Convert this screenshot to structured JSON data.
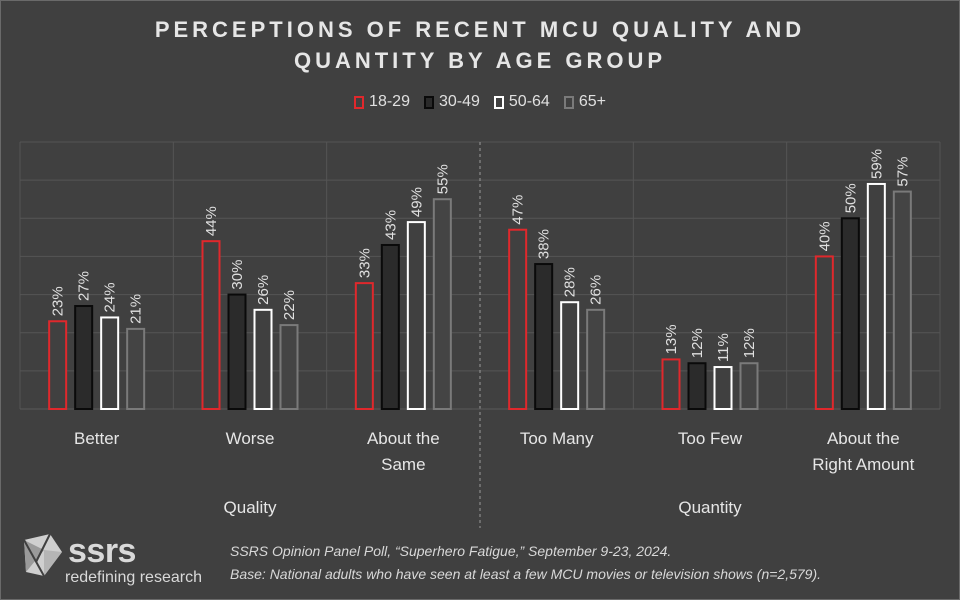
{
  "title_line1": "PERCEPTIONS OF RECENT MCU QUALITY AND",
  "title_line2": "QUANTITY BY AGE GROUP",
  "legend": [
    {
      "label": "18-29",
      "color": "#e0282c"
    },
    {
      "label": "30-49",
      "color": "#111111"
    },
    {
      "label": "50-64",
      "color": "#ffffff"
    },
    {
      "label": "65+",
      "color": "#7a7a7a"
    }
  ],
  "chart_data": {
    "type": "bar",
    "categories": [
      "Better",
      "Worse",
      "About the Same",
      "Too Many",
      "Too Few",
      "About the Right Amount"
    ],
    "category_lines": [
      [
        "Better"
      ],
      [
        "Worse"
      ],
      [
        "About the",
        "Same"
      ],
      [
        "Too Many"
      ],
      [
        "Too Few"
      ],
      [
        "About the",
        "Right Amount"
      ]
    ],
    "groups": [
      {
        "label": "Quality",
        "categories": [
          "Better",
          "Worse",
          "About the Same"
        ]
      },
      {
        "label": "Quantity",
        "categories": [
          "Too Many",
          "Too Few",
          "About the Right Amount"
        ]
      }
    ],
    "series": [
      {
        "name": "18-29",
        "values": [
          23,
          44,
          33,
          47,
          13,
          40
        ]
      },
      {
        "name": "30-49",
        "values": [
          27,
          30,
          43,
          38,
          12,
          50
        ]
      },
      {
        "name": "50-64",
        "values": [
          24,
          26,
          49,
          28,
          11,
          59
        ]
      },
      {
        "name": "65+",
        "values": [
          21,
          22,
          55,
          26,
          12,
          57
        ]
      }
    ],
    "value_suffix": "%",
    "ylim": [
      0,
      70
    ],
    "grid": true,
    "legend_position": "top"
  },
  "footer": {
    "line1": "SSRS Opinion Panel Poll, “Superhero Fatigue,” September 9-23, 2024.",
    "line2": "Base: National adults who have seen at least a few MCU movies or television shows (n=2,579)."
  },
  "logo": {
    "name": "ssrs",
    "tagline": "redefining research"
  }
}
